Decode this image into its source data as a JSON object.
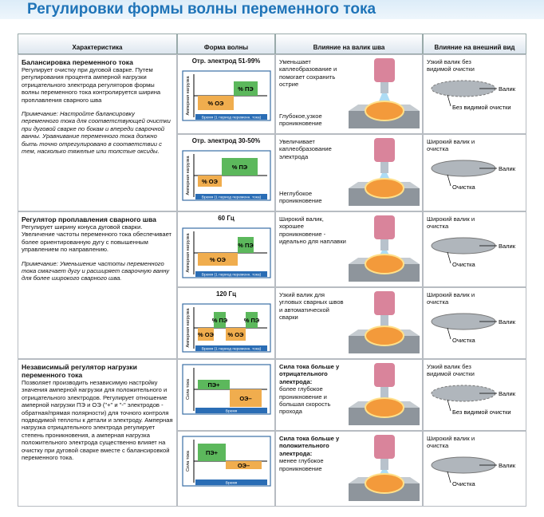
{
  "title": "Регулировки формы волны переменного тока",
  "header": [
    "Характеристика",
    "Форма волны",
    "Влияние на валик шва",
    "Влияние на внешний вид"
  ],
  "sections": [
    {
      "title": "Балансировка переменного тока",
      "description": "Регулирует очистку при дуговой сварке. Путем регулирования процента амперной нагрузки отрицательного электрода регуляторов формы волны переменного тока контролируется ширина проплавления сварного шва",
      "note": "Примечание: Настройте балансировку переменного тока для соответствующей очистки при дуговой сварке по бокам и впереди сварочной ванны. Уравнивание переменного тока должно быть точно отрегулировано в соответствии с тем, насколько тяжелые или толстые оксиды.",
      "rows": [
        {
          "wave_title": "Отр. электрод 51-99%",
          "wave_labels": [
            "% ПЭ",
            "% ОЭ"
          ],
          "y_axis": "Амперная нагрузка",
          "x_axis": "Время (1 период переменн. тока)",
          "bead": {
            "text": "Уменьшает каплеобразование и помогает сохранить острие",
            "text2": "Глубокое,узкое проникновение"
          },
          "appearance": "Узкий валик без видимой очистки",
          "callouts": [
            "Валик",
            "Без видимой очистки"
          ]
        },
        {
          "wave_title": "Отр. электрод 30-50%",
          "wave_labels": [
            "% ПЭ",
            "% ОЭ"
          ],
          "y_axis": "Амперная нагрузка",
          "x_axis": "Время (1 период переменн. тока)",
          "bead": {
            "text": "Увеличивает каплеобразование электрода",
            "text2": "Неглубокое проникновение"
          },
          "appearance": "Широкий валик и очистка",
          "callouts": [
            "Валик",
            "Очистка"
          ]
        }
      ]
    },
    {
      "title": "Регулятор проплавления сварного шва",
      "description": "Регулирует ширину конуса дуговой сварки. Увеличение частоты переменного тока обеспечивает более ориентированную дугу с повышенным управлением по направлению.",
      "note": "Примечание: Уменьшение частоты переменного тока смягчает дугу и расширяет сварочную ванну для более широкого сварного шва.",
      "rows": [
        {
          "wave_title": "60 Гц",
          "wave_labels": [
            "% ПЭ",
            "% ОЭ"
          ],
          "y_axis": "Амперная нагрузка",
          "x_axis": "Время (1 период переменн. тока)",
          "bead": {
            "text": "Широкий валик, хорошее проникновение - идеально для наплавки"
          },
          "appearance": "Широкий валик и очистка",
          "callouts": [
            "Валик",
            "Очистка"
          ]
        },
        {
          "wave_title": "120 Гц",
          "wave_labels": [
            "% ПЭ",
            "% ПЭ",
            "% ОЭ",
            "% ОЭ"
          ],
          "y_axis": "Амперная нагрузка",
          "x_axis": "Время (1 период переменн. тока)",
          "bead": {
            "text": "Узкий валик для угловых сварных швов и автоматической сварки"
          },
          "appearance": "Широкий валик и очистка",
          "callouts": [
            "Валик",
            "Очистка"
          ]
        }
      ]
    },
    {
      "title": "Независимый регулятор нагрузки переменного тока",
      "description": "Позволяет производить независимую настройку значения амперной нагрузки для положительного и отрицательного электродов. Регулирует отношение амперной нагрузки ПЭ и ОЭ (\"+\" и \"-\" электродов - обратная/прямая полярности) для точного контроля подводимой теплоты к детали и электроду. Амперная нагрузка отрицательного электрода регулирует степень проникновения, а амперная нагрузка положительного электрода существенно влияет на очистку при дуговой сварке вместе с балансировкой переменного тока.",
      "rows": [
        {
          "wave_labels": [
            "ПЭ+",
            "ОЭ–"
          ],
          "y_axis": "Сила тока",
          "x_axis": "Время",
          "bead": {
            "heading": "Сила тока больше у отрицательного электрода:",
            "text": "более глубокое проникновение и большая скорость прохода"
          },
          "appearance": "Узкий валик без видимой очистки",
          "callouts": [
            "Валик",
            "Без видимой очистки"
          ]
        },
        {
          "wave_labels": [
            "ПЭ+",
            "ОЭ–"
          ],
          "y_axis": "Сила тока",
          "x_axis": "Время",
          "bead": {
            "heading": "Сила тока больше у положительного электрода:",
            "text": "менее глубокое проникновение"
          },
          "appearance": "Широкий валик и очистка",
          "callouts": [
            "Валик",
            "Очистка"
          ]
        }
      ]
    }
  ]
}
